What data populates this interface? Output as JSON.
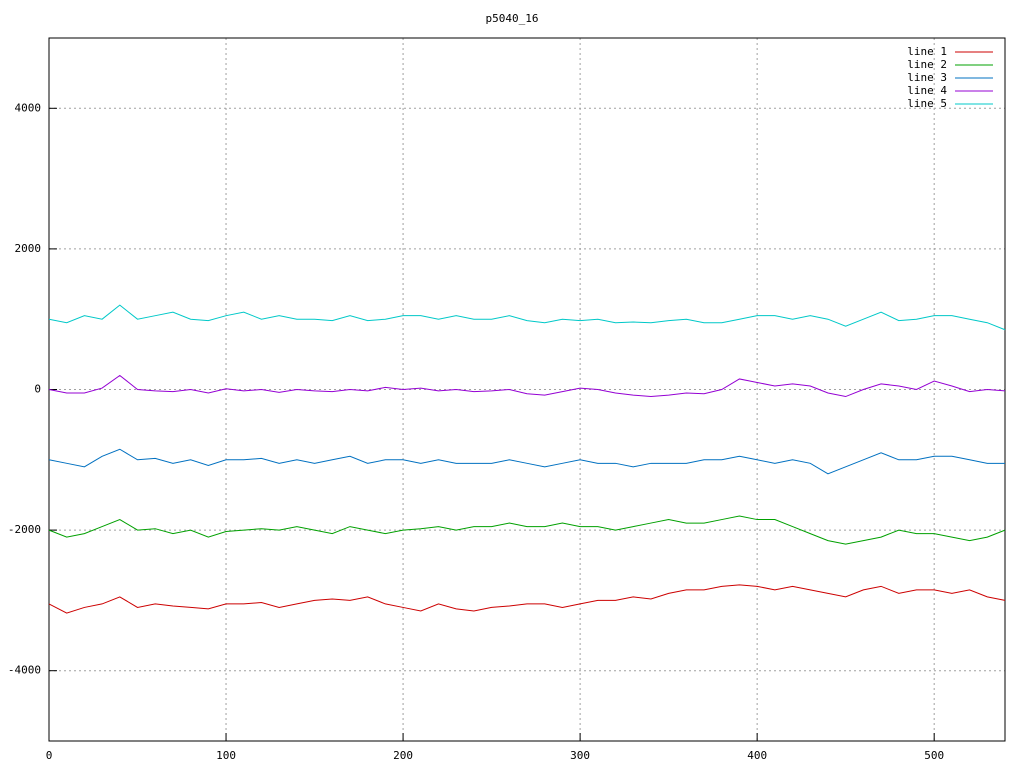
{
  "chart_data": {
    "type": "line",
    "title": "p5040_16",
    "x": [
      0,
      10,
      20,
      30,
      40,
      50,
      60,
      70,
      80,
      90,
      100,
      110,
      120,
      130,
      140,
      150,
      160,
      170,
      180,
      190,
      200,
      210,
      220,
      230,
      240,
      250,
      260,
      270,
      280,
      290,
      300,
      310,
      320,
      330,
      340,
      350,
      360,
      370,
      380,
      390,
      400,
      410,
      420,
      430,
      440,
      450,
      460,
      470,
      480,
      490,
      500,
      510,
      520,
      530,
      540
    ],
    "xlim": [
      0,
      540
    ],
    "xticks": [
      0,
      100,
      200,
      300,
      400,
      500
    ],
    "ylim": [
      -5000,
      5000
    ],
    "yticks": [
      -4000,
      -2000,
      0,
      2000,
      4000
    ],
    "grid": true,
    "legend": "top-right",
    "series": [
      {
        "name": "line 1",
        "color": "#cc0000",
        "values": [
          -3050,
          -3180,
          -3100,
          -3050,
          -2950,
          -3100,
          -3050,
          -3080,
          -3100,
          -3120,
          -3050,
          -3050,
          -3030,
          -3100,
          -3050,
          -3000,
          -2980,
          -3000,
          -2950,
          -3050,
          -3100,
          -3150,
          -3050,
          -3120,
          -3150,
          -3100,
          -3080,
          -3050,
          -3050,
          -3100,
          -3050,
          -3000,
          -3000,
          -2950,
          -2980,
          -2900,
          -2850,
          -2850,
          -2800,
          -2780,
          -2800,
          -2850,
          -2800,
          -2850,
          -2900,
          -2950,
          -2850,
          -2800,
          -2900,
          -2850,
          -2850,
          -2900,
          -2850,
          -2950,
          -3000
        ]
      },
      {
        "name": "line 2",
        "color": "#00a000",
        "values": [
          -2000,
          -2100,
          -2050,
          -1950,
          -1850,
          -2000,
          -1980,
          -2050,
          -2000,
          -2100,
          -2020,
          -2000,
          -1980,
          -2000,
          -1950,
          -2000,
          -2050,
          -1950,
          -2000,
          -2050,
          -2000,
          -1980,
          -1950,
          -2000,
          -1950,
          -1950,
          -1900,
          -1950,
          -1950,
          -1900,
          -1950,
          -1950,
          -2000,
          -1950,
          -1900,
          -1850,
          -1900,
          -1900,
          -1850,
          -1800,
          -1850,
          -1850,
          -1950,
          -2050,
          -2150,
          -2200,
          -2150,
          -2100,
          -2000,
          -2050,
          -2050,
          -2100,
          -2150,
          -2100,
          -2000
        ]
      },
      {
        "name": "line 3",
        "color": "#0070c0",
        "values": [
          -1000,
          -1050,
          -1100,
          -950,
          -850,
          -1000,
          -980,
          -1050,
          -1000,
          -1080,
          -1000,
          -1000,
          -980,
          -1050,
          -1000,
          -1050,
          -1000,
          -950,
          -1050,
          -1000,
          -1000,
          -1050,
          -1000,
          -1050,
          -1050,
          -1050,
          -1000,
          -1050,
          -1100,
          -1050,
          -1000,
          -1050,
          -1050,
          -1100,
          -1050,
          -1050,
          -1050,
          -1000,
          -1000,
          -950,
          -1000,
          -1050,
          -1000,
          -1050,
          -1200,
          -1100,
          -1000,
          -900,
          -1000,
          -1000,
          -950,
          -950,
          -1000,
          -1050,
          -1050
        ]
      },
      {
        "name": "line 4",
        "color": "#9400d3",
        "values": [
          0,
          -50,
          -50,
          20,
          200,
          0,
          -20,
          -30,
          0,
          -50,
          10,
          -20,
          0,
          -40,
          0,
          -20,
          -30,
          0,
          -20,
          30,
          0,
          20,
          -20,
          0,
          -30,
          -20,
          0,
          -60,
          -80,
          -30,
          20,
          0,
          -50,
          -80,
          -100,
          -80,
          -50,
          -60,
          0,
          150,
          100,
          50,
          80,
          50,
          -50,
          -100,
          0,
          80,
          50,
          0,
          120,
          50,
          -30,
          0,
          -20
        ]
      },
      {
        "name": "line 5",
        "color": "#00c8c8",
        "values": [
          1000,
          950,
          1050,
          1000,
          1200,
          1000,
          1050,
          1100,
          1000,
          980,
          1050,
          1100,
          1000,
          1050,
          1000,
          1000,
          980,
          1050,
          980,
          1000,
          1050,
          1050,
          1000,
          1050,
          1000,
          1000,
          1050,
          980,
          950,
          1000,
          980,
          1000,
          950,
          960,
          950,
          980,
          1000,
          950,
          950,
          1000,
          1050,
          1050,
          1000,
          1050,
          1000,
          900,
          1000,
          1100,
          980,
          1000,
          1050,
          1050,
          1000,
          950,
          850
        ]
      }
    ]
  }
}
